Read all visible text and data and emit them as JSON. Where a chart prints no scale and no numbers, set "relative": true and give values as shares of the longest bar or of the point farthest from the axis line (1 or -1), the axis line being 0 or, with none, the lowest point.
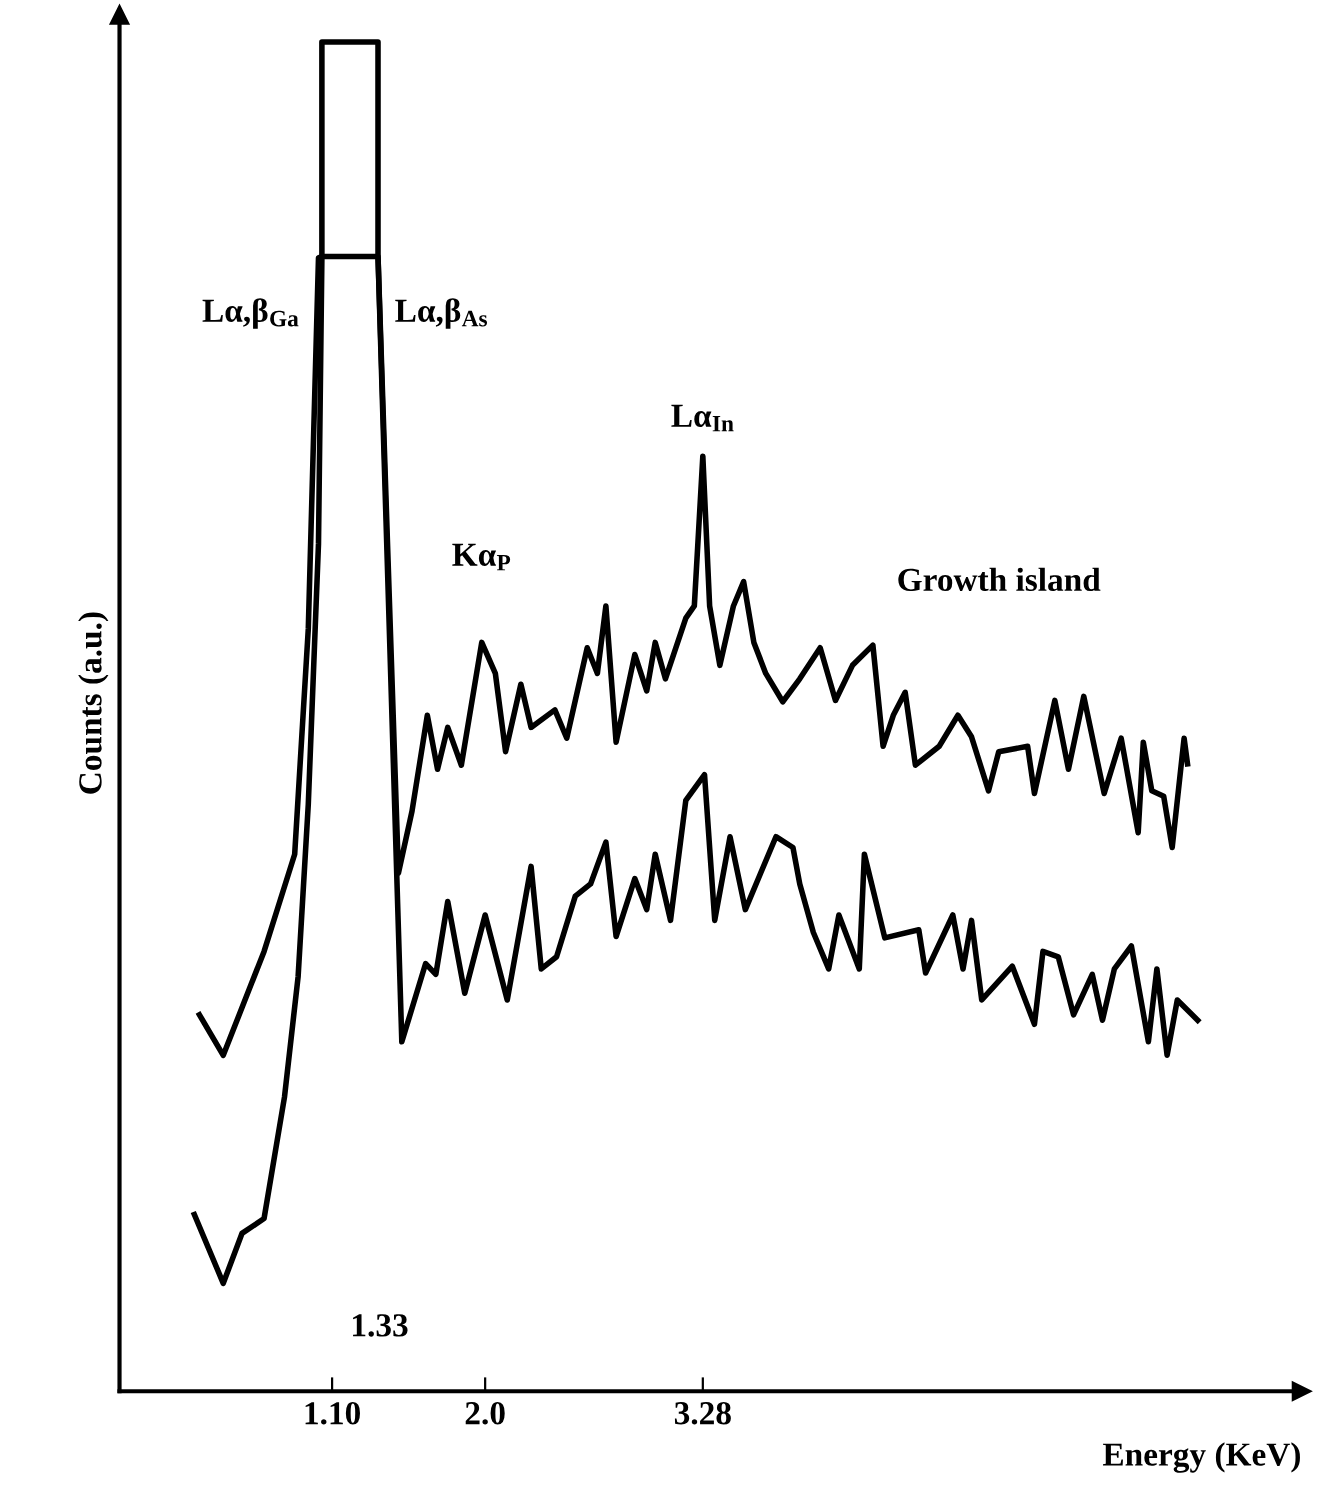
{
  "chart_data": {
    "type": "line",
    "relative": true,
    "xlabel": "Energy (KeV)",
    "ylabel": "Counts (a.u.)",
    "xlim": [
      -0.15,
      6.8
    ],
    "xticks": [
      {
        "value": 1.1,
        "label": "1.10"
      },
      {
        "value": 2.0,
        "label": "2.0"
      },
      3.28
    ],
    "series": [
      {
        "name": "Growth island",
        "color": "#000000",
        "x": [
          0.32,
          0.46,
          0.7,
          0.88,
          0.96,
          1.02,
          1.04,
          1.37,
          1.49,
          1.57,
          1.66,
          1.72,
          1.78,
          1.86,
          1.98,
          2.06,
          2.12,
          2.21,
          2.27,
          2.41,
          2.48,
          2.6,
          2.66,
          2.71,
          2.77,
          2.88,
          2.95,
          3.0,
          3.06,
          3.18,
          3.23,
          3.28,
          3.32,
          3.38,
          3.46,
          3.52,
          3.58,
          3.65,
          3.75,
          3.85,
          3.97,
          4.06,
          4.16,
          4.28,
          4.34,
          4.4,
          4.47,
          4.53,
          4.67,
          4.78,
          4.86,
          4.96,
          5.02,
          5.19,
          5.23,
          5.35,
          5.43,
          5.52,
          5.64,
          5.74,
          5.84,
          5.87,
          5.92,
          5.99,
          6.04,
          6.11,
          6.13
        ],
        "values": [
          0.279,
          0.249,
          0.326,
          0.398,
          0.565,
          0.84,
          0.841,
          0.841,
          0.384,
          0.43,
          0.501,
          0.461,
          0.492,
          0.464,
          0.555,
          0.532,
          0.474,
          0.524,
          0.492,
          0.505,
          0.484,
          0.551,
          0.532,
          0.582,
          0.481,
          0.546,
          0.519,
          0.555,
          0.528,
          0.573,
          0.582,
          0.693,
          0.582,
          0.538,
          0.582,
          0.6,
          0.555,
          0.532,
          0.511,
          0.528,
          0.551,
          0.512,
          0.538,
          0.553,
          0.478,
          0.501,
          0.518,
          0.464,
          0.478,
          0.501,
          0.485,
          0.445,
          0.474,
          0.478,
          0.443,
          0.512,
          0.461,
          0.515,
          0.443,
          0.484,
          0.414,
          0.481,
          0.445,
          0.441,
          0.403,
          0.484,
          0.465
        ]
      },
      {
        "color": "#000000",
        "x": [
          0.29,
          0.46,
          0.57,
          0.7,
          0.82,
          0.9,
          0.96,
          1.02,
          1.04,
          1.04,
          1.37,
          1.37,
          1.51,
          1.65,
          1.71,
          1.78,
          1.88,
          2.0,
          2.13,
          2.27,
          2.33,
          2.42,
          2.53,
          2.62,
          2.71,
          2.77,
          2.88,
          2.95,
          3.0,
          3.09,
          3.18,
          3.29,
          3.35,
          3.44,
          3.53,
          3.71,
          3.81,
          3.85,
          3.93,
          4.02,
          4.08,
          4.2,
          4.23,
          4.35,
          4.55,
          4.59,
          4.75,
          4.81,
          4.86,
          4.92,
          5.1,
          5.23,
          5.28,
          5.37,
          5.46,
          5.57,
          5.63,
          5.7,
          5.8,
          5.9,
          5.95,
          6.01,
          6.07,
          6.19
        ],
        "values": [
          0.131,
          0.08,
          0.117,
          0.128,
          0.218,
          0.307,
          0.435,
          0.628,
          0.84,
          1.0,
          1.0,
          0.841,
          0.259,
          0.317,
          0.309,
          0.363,
          0.295,
          0.353,
          0.29,
          0.389,
          0.313,
          0.322,
          0.367,
          0.376,
          0.407,
          0.337,
          0.38,
          0.357,
          0.398,
          0.349,
          0.438,
          0.457,
          0.349,
          0.411,
          0.357,
          0.411,
          0.403,
          0.376,
          0.34,
          0.313,
          0.353,
          0.313,
          0.398,
          0.336,
          0.342,
          0.31,
          0.353,
          0.313,
          0.349,
          0.29,
          0.315,
          0.272,
          0.326,
          0.322,
          0.279,
          0.309,
          0.275,
          0.313,
          0.33,
          0.259,
          0.313,
          0.249,
          0.29,
          0.275
        ]
      }
    ],
    "annotations": [
      {
        "text": "Lα,β$_{Ga}$",
        "x": 1.04,
        "y": 0.841
      },
      {
        "text": "Lα,β$_{As}$",
        "x": 1.37,
        "y": 0.841
      },
      {
        "text": "Kα$_{P}$",
        "x": 1.98,
        "y": 0.555
      },
      {
        "text": "Lα$_{In}$",
        "x": 3.28,
        "y": 0.693
      },
      "1.33"
    ]
  }
}
